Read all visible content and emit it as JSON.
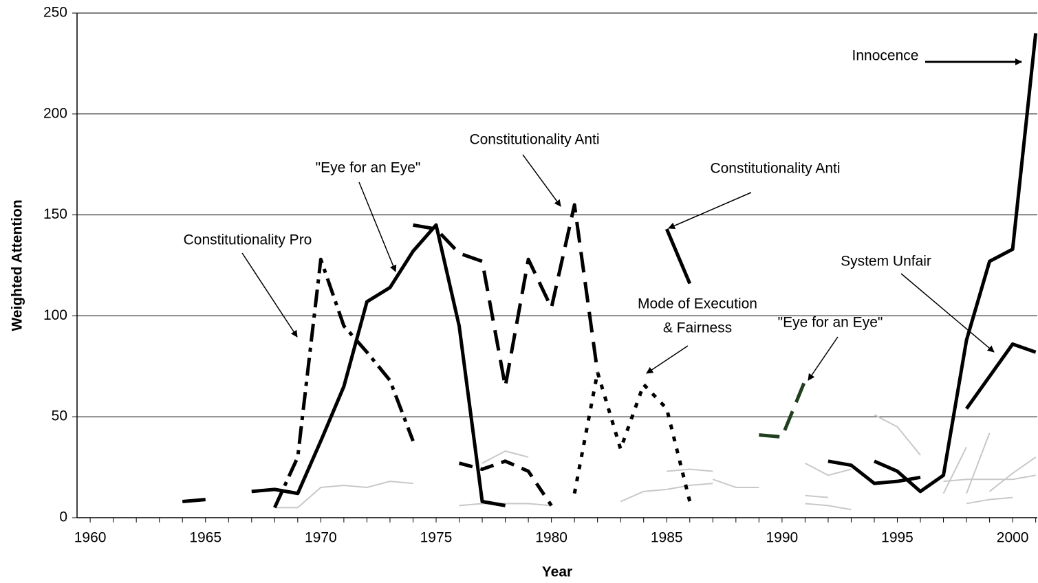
{
  "chart_data": {
    "type": "line",
    "xlabel": "Year",
    "ylabel": "Weighted Attention",
    "xlim": [
      1959.43,
      2001.07
    ],
    "ylim": [
      0,
      250
    ],
    "xticks": [
      1960,
      1965,
      1970,
      1975,
      1980,
      1985,
      1990,
      1995,
      2000
    ],
    "xminorticks": [
      1960,
      1961,
      1962,
      1963,
      1964,
      1965,
      1966,
      1967,
      1968,
      1969,
      1970,
      1971,
      1972,
      1973,
      1974,
      1975,
      1976,
      1977,
      1978,
      1979,
      1980,
      1981,
      1982,
      1983,
      1984,
      1985,
      1986,
      1987,
      1988,
      1989,
      1990,
      1991,
      1992,
      1993,
      1994,
      1995,
      1996,
      1997,
      1998,
      1999,
      2000,
      2001
    ],
    "yticks": [
      0,
      50,
      100,
      150,
      200,
      250
    ],
    "grid": true,
    "series": [
      {
        "color": "#c8c8c8",
        "width": 2,
        "dash": "solid",
        "x": [
          1968,
          1969,
          1970,
          1971,
          1972,
          1973,
          1974
        ],
        "values": [
          5,
          5,
          15,
          16,
          15,
          18,
          17
        ]
      },
      {
        "color": "#c8c8c8",
        "width": 2,
        "dash": "solid",
        "x": [
          1976,
          1977,
          1978,
          1979,
          1980
        ],
        "values": [
          6,
          7,
          7,
          7,
          6
        ]
      },
      {
        "color": "#c8c8c8",
        "width": 2,
        "dash": "solid",
        "x": [
          1977,
          1978,
          1979
        ],
        "values": [
          27,
          33,
          30
        ]
      },
      {
        "color": "#c8c8c8",
        "width": 2,
        "dash": "solid",
        "x": [
          1983,
          1984,
          1985,
          1986,
          1987
        ],
        "values": [
          8,
          13,
          14,
          16,
          17
        ]
      },
      {
        "color": "#c8c8c8",
        "width": 2,
        "dash": "solid",
        "x": [
          1985,
          1986,
          1987
        ],
        "values": [
          23,
          24,
          23
        ]
      },
      {
        "color": "#c8c8c8",
        "width": 2,
        "dash": "solid",
        "x": [
          1987,
          1988,
          1989
        ],
        "values": [
          19,
          15,
          15
        ]
      },
      {
        "color": "#c8c8c8",
        "width": 2,
        "dash": "solid",
        "x": [
          1991,
          1992,
          1993
        ],
        "values": [
          27,
          21,
          24
        ]
      },
      {
        "color": "#c8c8c8",
        "width": 2,
        "dash": "solid",
        "x": [
          1991,
          1992
        ],
        "values": [
          11,
          10
        ]
      },
      {
        "color": "#c8c8c8",
        "width": 2,
        "dash": "solid",
        "x": [
          1991,
          1992,
          1993
        ],
        "values": [
          7,
          6,
          4
        ]
      },
      {
        "color": "#c8c8c8",
        "width": 2,
        "dash": "solid",
        "x": [
          1994,
          1995,
          1996
        ],
        "values": [
          51,
          45,
          31
        ]
      },
      {
        "color": "#c8c8c8",
        "width": 2,
        "dash": "solid",
        "x": [
          1997,
          1998
        ],
        "values": [
          12,
          35
        ]
      },
      {
        "color": "#c8c8c8",
        "width": 2,
        "dash": "solid",
        "x": [
          1997,
          1998,
          1999,
          2000,
          2001
        ],
        "values": [
          18,
          19,
          19,
          19,
          21
        ]
      },
      {
        "color": "#c8c8c8",
        "width": 2,
        "dash": "solid",
        "x": [
          1998,
          1999
        ],
        "values": [
          12,
          42
        ]
      },
      {
        "color": "#c8c8c8",
        "width": 2,
        "dash": "solid",
        "x": [
          1998,
          1999,
          2000
        ],
        "values": [
          7,
          9,
          10
        ]
      },
      {
        "color": "#c8c8c8",
        "width": 2,
        "dash": "solid",
        "x": [
          1999,
          2000,
          2001
        ],
        "values": [
          13,
          22,
          30
        ]
      },
      {
        "color": "#000000",
        "width": 5,
        "dash": "solid",
        "x": [
          1964,
          1965,
          1966,
          1967,
          1968,
          1969,
          1970,
          1971,
          1972,
          1973,
          1974,
          1975,
          1976,
          1977,
          1978
        ],
        "values": [
          8,
          9,
          null,
          13,
          14,
          12,
          38,
          65,
          107,
          114,
          132,
          145,
          95,
          8,
          6
        ]
      },
      {
        "color": "#000000",
        "width": 5,
        "dash": "dashdot",
        "x": [
          1968,
          1969,
          1970,
          1971,
          1972,
          1973,
          1974
        ],
        "values": [
          5,
          30,
          128,
          95,
          82,
          68,
          38
        ]
      },
      {
        "color": "#000000",
        "width": 5,
        "dash": "longdash",
        "x": [
          1974,
          1975,
          1976,
          1977,
          1978,
          1979,
          1980,
          1981,
          1982
        ],
        "values": [
          145,
          143,
          131,
          127,
          65,
          128,
          104,
          155,
          72
        ]
      },
      {
        "color": "#000000",
        "width": 5,
        "dash": "dashed",
        "x": [
          1976,
          1977,
          1978,
          1979,
          1980
        ],
        "values": [
          27,
          24,
          28,
          23,
          6
        ]
      },
      {
        "color": "#000000",
        "width": 5,
        "dash": "dotted",
        "x": [
          1981,
          1982,
          1983,
          1984,
          1985,
          1986
        ],
        "values": [
          12,
          72,
          34,
          66,
          54,
          8
        ]
      },
      {
        "color": "#000000",
        "width": 5,
        "dash": "solid",
        "x": [
          1985,
          1986
        ],
        "values": [
          143,
          116
        ]
      },
      {
        "color": "#1f3f1f",
        "width": 5,
        "dash": "longdash",
        "x": [
          1989,
          1990,
          1991
        ],
        "values": [
          41,
          40,
          68
        ]
      },
      {
        "color": "#000000",
        "width": 5,
        "dash": "solid",
        "x": [
          1992,
          1993,
          1994,
          1995,
          1996
        ],
        "values": [
          28,
          26,
          17,
          18,
          20
        ]
      },
      {
        "color": "#000000",
        "width": 5,
        "dash": "solid",
        "x": [
          1994,
          1995,
          1996,
          1997,
          1998,
          1999,
          2000,
          2001
        ],
        "values": [
          28,
          23,
          13,
          21,
          88,
          127,
          133,
          240
        ]
      },
      {
        "color": "#000000",
        "width": 5,
        "dash": "solid",
        "x": [
          1998,
          2000,
          2001
        ],
        "values": [
          54,
          86,
          82
        ]
      }
    ],
    "annotations": [
      {
        "lines": [
          "Innocence"
        ]
      },
      {
        "lines": [
          "Constitutionality Anti"
        ]
      },
      {
        "lines": [
          "\"Eye for an Eye\""
        ]
      },
      {
        "lines": [
          "Constitutionality Anti"
        ]
      },
      {
        "lines": [
          "Constitutionality Pro"
        ]
      },
      {
        "lines": [
          "Mode of Execution",
          "& Fairness"
        ]
      },
      {
        "lines": [
          "\"Eye for an Eye\""
        ]
      },
      {
        "lines": [
          "System Unfair"
        ]
      }
    ]
  }
}
